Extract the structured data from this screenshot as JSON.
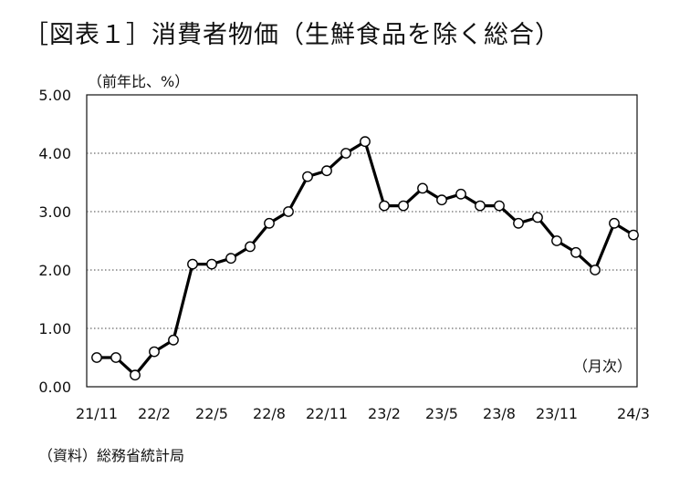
{
  "chart_data": {
    "type": "line",
    "title": "［図表１］消費者物価（生鮮食品を除く総合）",
    "ylabel": "（前年比、%）",
    "xlabel": "（月次）",
    "source": "（資料）総務省統計局",
    "ylim": [
      0,
      5
    ],
    "yticks": [
      "5.00",
      "4.00",
      "3.00",
      "2.00",
      "1.00",
      "0.00"
    ],
    "xtick_labels": [
      {
        "index": 0,
        "label": "21/11"
      },
      {
        "index": 3,
        "label": "22/2"
      },
      {
        "index": 6,
        "label": "22/5"
      },
      {
        "index": 9,
        "label": "22/8"
      },
      {
        "index": 12,
        "label": "22/11"
      },
      {
        "index": 15,
        "label": "23/2"
      },
      {
        "index": 18,
        "label": "23/5"
      },
      {
        "index": 21,
        "label": "23/8"
      },
      {
        "index": 24,
        "label": "23/11"
      },
      {
        "index": 28,
        "label": "24/3"
      }
    ],
    "grid": true,
    "x": [
      "21/11",
      "21/12",
      "22/1",
      "22/2",
      "22/3",
      "22/4",
      "22/5",
      "22/6",
      "22/7",
      "22/8",
      "22/9",
      "22/10",
      "22/11",
      "22/12",
      "23/1",
      "23/2",
      "23/3",
      "23/4",
      "23/5",
      "23/6",
      "23/7",
      "23/8",
      "23/9",
      "23/10",
      "23/11",
      "23/12",
      "24/1",
      "24/2",
      "24/3"
    ],
    "values": [
      0.5,
      0.5,
      0.2,
      0.6,
      0.8,
      2.1,
      2.1,
      2.2,
      2.4,
      2.8,
      3.0,
      3.6,
      3.7,
      4.0,
      4.2,
      3.1,
      3.1,
      3.4,
      3.2,
      3.3,
      3.1,
      3.1,
      2.8,
      2.9,
      2.5,
      2.3,
      2.0,
      2.8,
      2.6
    ]
  }
}
